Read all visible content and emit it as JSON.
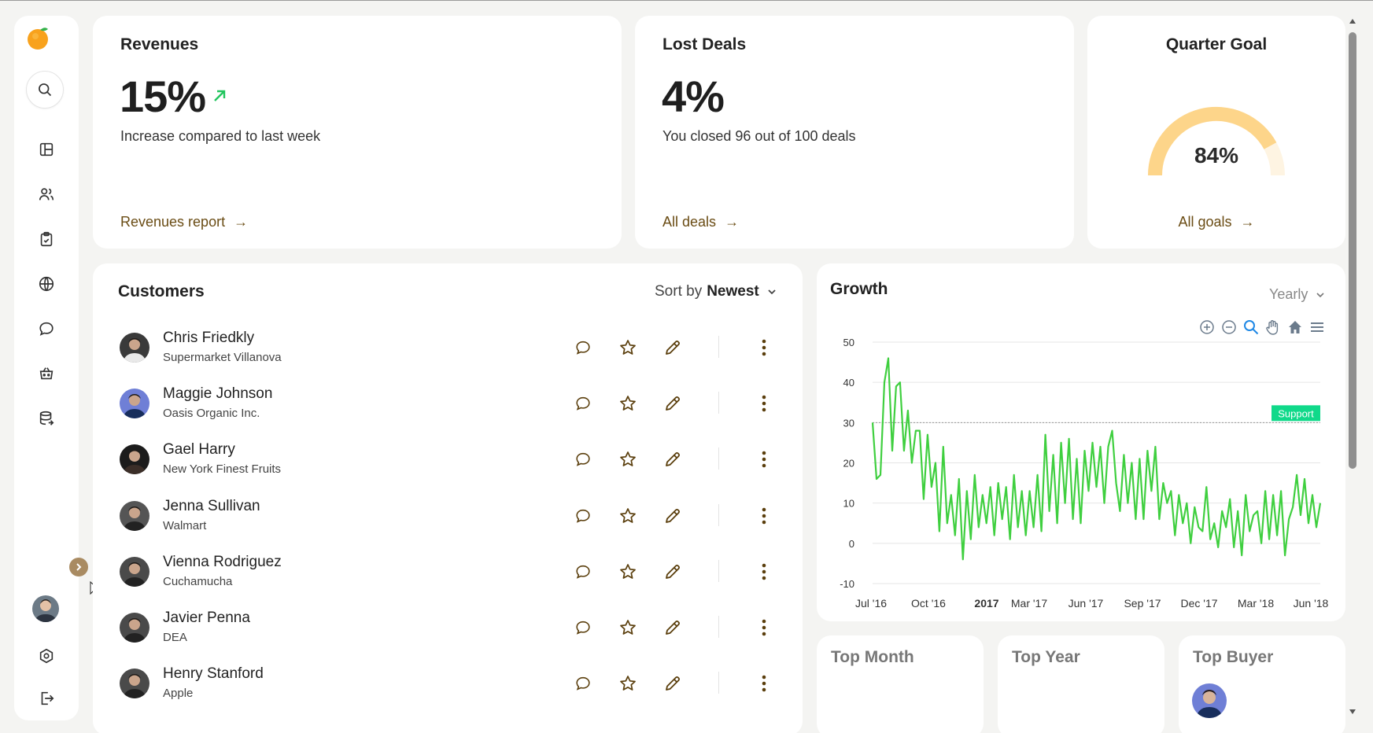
{
  "revenues": {
    "title": "Revenues",
    "value": "15%",
    "description": "Increase compared to last week",
    "link": "Revenues report",
    "arrow": "→"
  },
  "lost_deals": {
    "title": "Lost Deals",
    "value": "4%",
    "description": "You closed 96 out of 100 deals",
    "link": "All deals",
    "arrow": "→"
  },
  "quarter_goal": {
    "title": "Quarter Goal",
    "value": "84%",
    "progress": 0.84,
    "link": "All goals",
    "arrow": "→"
  },
  "customers": {
    "title": "Customers",
    "sort_prefix": "Sort by",
    "sort_value": "Newest",
    "rows": [
      {
        "name": "Chris Friedkly",
        "company": "Supermarket Villanova"
      },
      {
        "name": "Maggie Johnson",
        "company": "Oasis Organic Inc."
      },
      {
        "name": "Gael Harry",
        "company": "New York Finest Fruits"
      },
      {
        "name": "Jenna Sullivan",
        "company": "Walmart"
      },
      {
        "name": "Vienna Rodriguez",
        "company": "Cuchamucha"
      },
      {
        "name": "Javier Penna",
        "company": "DEA"
      },
      {
        "name": "Henry Stanford",
        "company": "Apple"
      }
    ]
  },
  "growth": {
    "title": "Growth",
    "period": "Yearly",
    "annotation": "Support"
  },
  "chart_data": {
    "type": "line",
    "title": "",
    "xlabel": "",
    "ylabel": "",
    "ylim": [
      -10,
      50
    ],
    "yticks": [
      "50",
      "40",
      "30",
      "20",
      "10",
      "0",
      "-10"
    ],
    "xticks": [
      "Jul '16",
      "Oct '16",
      "2017",
      "Mar '17",
      "Jun '17",
      "Sep '17",
      "Dec '17",
      "Mar '18",
      "Jun '18"
    ],
    "annotation_line": {
      "y": 30,
      "label": "Support"
    },
    "line_color": "#3fcf3f",
    "series": [
      {
        "values": [
          30,
          16,
          17,
          40,
          46,
          23,
          39,
          40,
          23,
          33,
          20,
          28,
          28,
          11,
          27,
          14,
          20,
          3,
          24,
          5,
          12,
          2,
          16,
          -4,
          13,
          1,
          17,
          4,
          12,
          5,
          14,
          2,
          15,
          6,
          14,
          1,
          17,
          4,
          13,
          2,
          13,
          4,
          17,
          3,
          27,
          8,
          22,
          5,
          25,
          10,
          26,
          6,
          21,
          5,
          23,
          13,
          25,
          14,
          24,
          10,
          24,
          28,
          15,
          8,
          22,
          10,
          20,
          6,
          21,
          6,
          23,
          13,
          24,
          6,
          15,
          10,
          13,
          2,
          12,
          5,
          10,
          0,
          9,
          4,
          3,
          14,
          1,
          5,
          -1,
          8,
          4,
          11,
          -1,
          8,
          -3,
          12,
          3,
          7,
          8,
          0,
          13,
          1,
          12,
          2,
          13,
          -3,
          6,
          9,
          17,
          7,
          16,
          5,
          12,
          4,
          10
        ]
      }
    ]
  },
  "bottom_cards": {
    "top_month": "Top Month",
    "top_year": "Top Year",
    "top_buyer": "Top Buyer"
  },
  "colors": {
    "accent": "#6a4c14",
    "gauge": "#fdd58a",
    "arrow_green": "#22c55e",
    "support_badge": "#10d98a"
  }
}
